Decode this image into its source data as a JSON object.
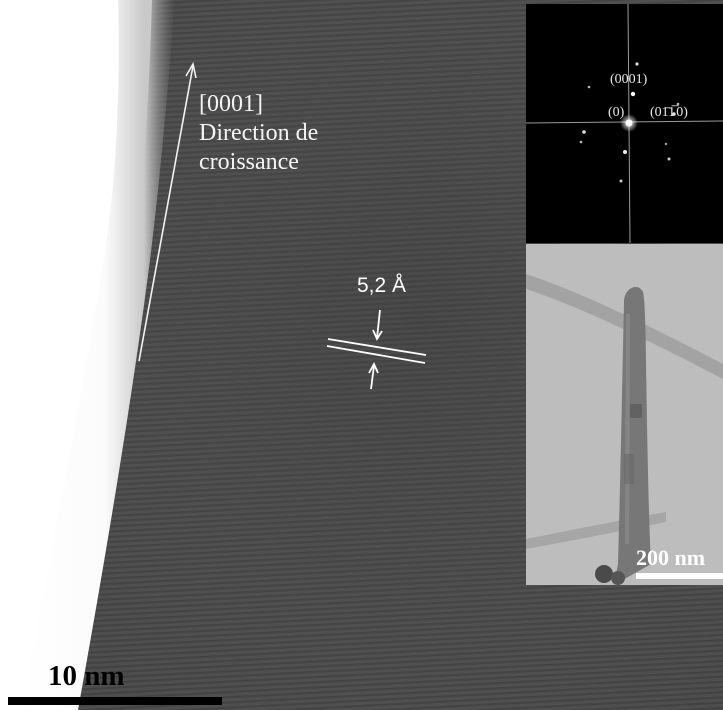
{
  "main_image": {
    "growth_direction": [
      "[0001]",
      "Direction de",
      "croissance"
    ],
    "lattice_spacing": "5,2 Å",
    "scale_bar": "10 nm"
  },
  "fft_inset": {
    "labels": {
      "top": "(0001)",
      "center": "(0)",
      "right": "(01̄1̅ 0)"
    }
  },
  "tem_inset": {
    "scale_bar": "200 nm"
  },
  "colors": {
    "background_light": "#ffffff",
    "lattice_dark": "#4a4a4a",
    "fft_background": "#000000",
    "annotation": "#ffffff"
  }
}
